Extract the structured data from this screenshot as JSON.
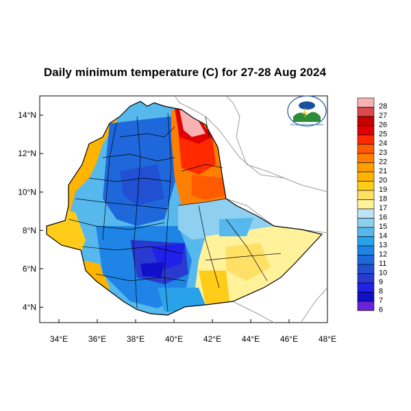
{
  "title": "Daily minimum temperature (C) for 27-28 Aug 2024",
  "map": {
    "lon_range": [
      33,
      48
    ],
    "lat_range": [
      3.2,
      15
    ],
    "lon_ticks": [
      "34°E",
      "36°E",
      "38°E",
      "40°E",
      "42°E",
      "44°E",
      "46°E",
      "48°E"
    ],
    "lon_values": [
      34,
      36,
      38,
      40,
      42,
      44,
      46,
      48
    ],
    "lat_ticks": [
      "14°N",
      "12°N",
      "10°N",
      "8°N",
      "6°N",
      "4°N"
    ],
    "lat_values": [
      14,
      12,
      10,
      8,
      6,
      4
    ]
  },
  "colorbar": {
    "labels": [
      "28",
      "27",
      "26",
      "25",
      "24",
      "23",
      "22",
      "21",
      "20",
      "19",
      "18",
      "17",
      "16",
      "15",
      "14",
      "13",
      "12",
      "11",
      "10",
      "9",
      "8",
      "7",
      "6"
    ],
    "colors": [
      "#f7b3b3",
      "#d94a4a",
      "#c40000",
      "#e00000",
      "#ff2a00",
      "#ff5a00",
      "#ff7f00",
      "#ff9e00",
      "#ffb400",
      "#ffcc1a",
      "#ffe066",
      "#fff29a",
      "#bde3f5",
      "#8fd0f0",
      "#56b8ec",
      "#2aa2ea",
      "#1e85e6",
      "#1f68dc",
      "#2150d2",
      "#2a3ad0",
      "#2020e8",
      "#1010c8",
      "#6a22d8"
    ]
  },
  "logo": {
    "caption": "Ethiopian Meteorology Institute"
  }
}
